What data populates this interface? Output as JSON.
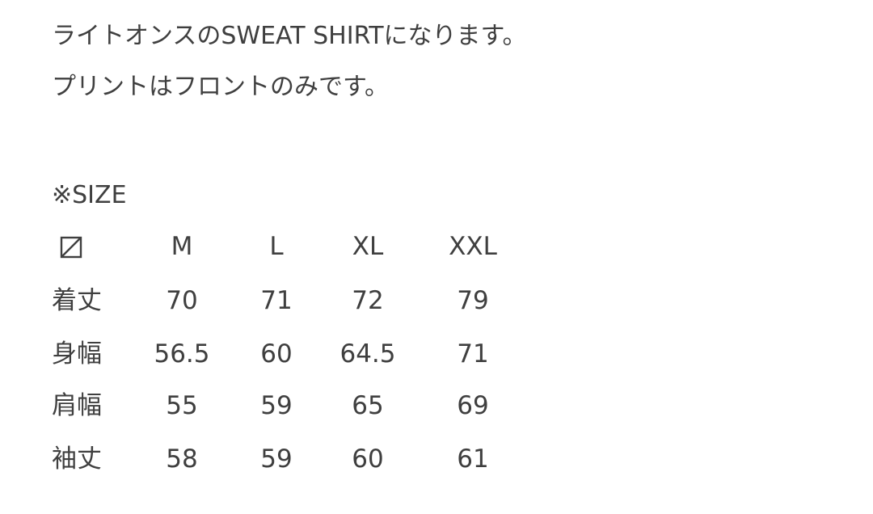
{
  "description": {
    "line1": "ライトオンスのSWEAT SHIRTになります。",
    "line2": "プリントはフロントのみです。"
  },
  "size_heading": "※SIZE",
  "size_table": {
    "corner_icon": "squared-diagonal-icon",
    "columns": [
      "M",
      "L",
      "XL",
      "XXL"
    ],
    "rows": [
      {
        "label": "着丈",
        "values": [
          "70",
          "71",
          "72",
          "79"
        ]
      },
      {
        "label": "身幅",
        "values": [
          "56.5",
          "60",
          "64.5",
          "71"
        ]
      },
      {
        "label": "肩幅",
        "values": [
          "55",
          "59",
          "65",
          "69"
        ]
      },
      {
        "label": "袖丈",
        "values": [
          "58",
          "59",
          "60",
          "61"
        ]
      }
    ]
  }
}
